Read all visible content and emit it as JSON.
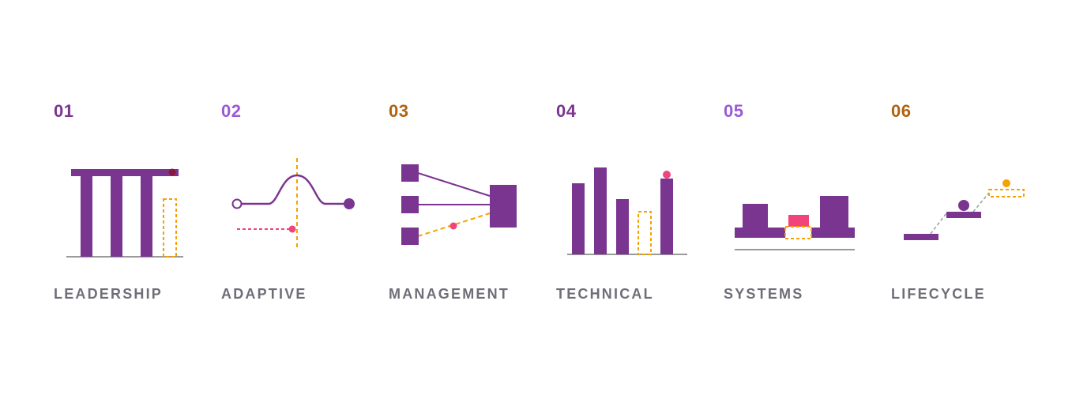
{
  "colors": {
    "purple": "#7a3590",
    "violet": "#9b59d6",
    "amber": "#b1620f",
    "orange": "#f5a200",
    "pink": "#f0447a",
    "gray": "#9a9a9a",
    "label": "#6e6e78"
  },
  "cards": [
    {
      "number": "01",
      "number_color": "#7a3590",
      "label": "LEADERSHIP"
    },
    {
      "number": "02",
      "number_color": "#9b59d6",
      "label": "ADAPTIVE"
    },
    {
      "number": "03",
      "number_color": "#b1620f",
      "label": "MANAGEMENT"
    },
    {
      "number": "04",
      "number_color": "#7a3590",
      "label": "TECHNICAL"
    },
    {
      "number": "05",
      "number_color": "#9b59d6",
      "label": "SYSTEMS"
    },
    {
      "number": "06",
      "number_color": "#b1620f",
      "label": "LIFECYCLE"
    }
  ]
}
